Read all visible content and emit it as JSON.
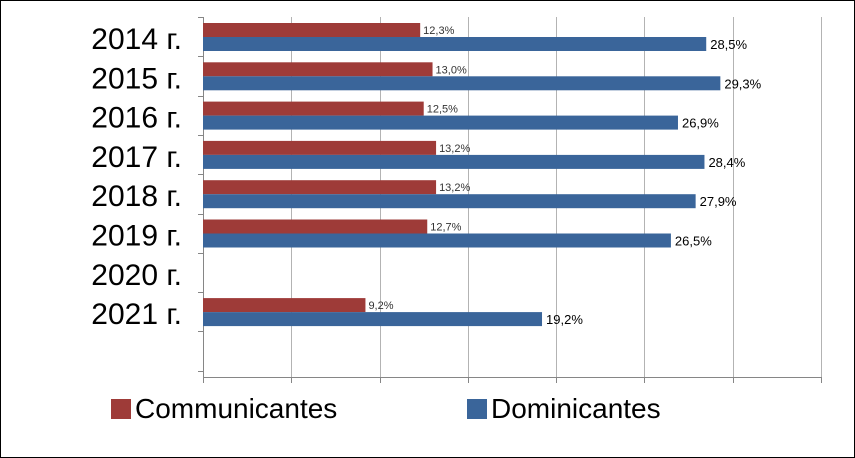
{
  "chart_data": {
    "type": "bar",
    "orientation": "horizontal",
    "categories": [
      "2014 г.",
      "2015 г.",
      "2016 г.",
      "2017 г.",
      "2018 г.",
      "2019 г.",
      "2020 г.",
      "2021 г."
    ],
    "series": [
      {
        "name": "Communicantes",
        "color": "#9E3B38",
        "values": [
          12.3,
          13.0,
          12.5,
          13.2,
          13.2,
          12.7,
          null,
          9.2
        ],
        "labels": [
          "12,3%",
          "13,0%",
          "12,5%",
          "13,2%",
          "13,2%",
          "12,7%",
          "",
          "9,2%"
        ]
      },
      {
        "name": "Dominicantes",
        "color": "#3A659A",
        "values": [
          28.5,
          29.3,
          26.9,
          28.4,
          27.9,
          26.5,
          null,
          19.2
        ],
        "labels": [
          "28,5%",
          "29,3%",
          "26,9%",
          "28,4%",
          "27,9%",
          "26,5%",
          "",
          "19,2%"
        ]
      }
    ],
    "xlim": [
      0,
      35
    ],
    "grid": true,
    "legend_position": "bottom"
  }
}
